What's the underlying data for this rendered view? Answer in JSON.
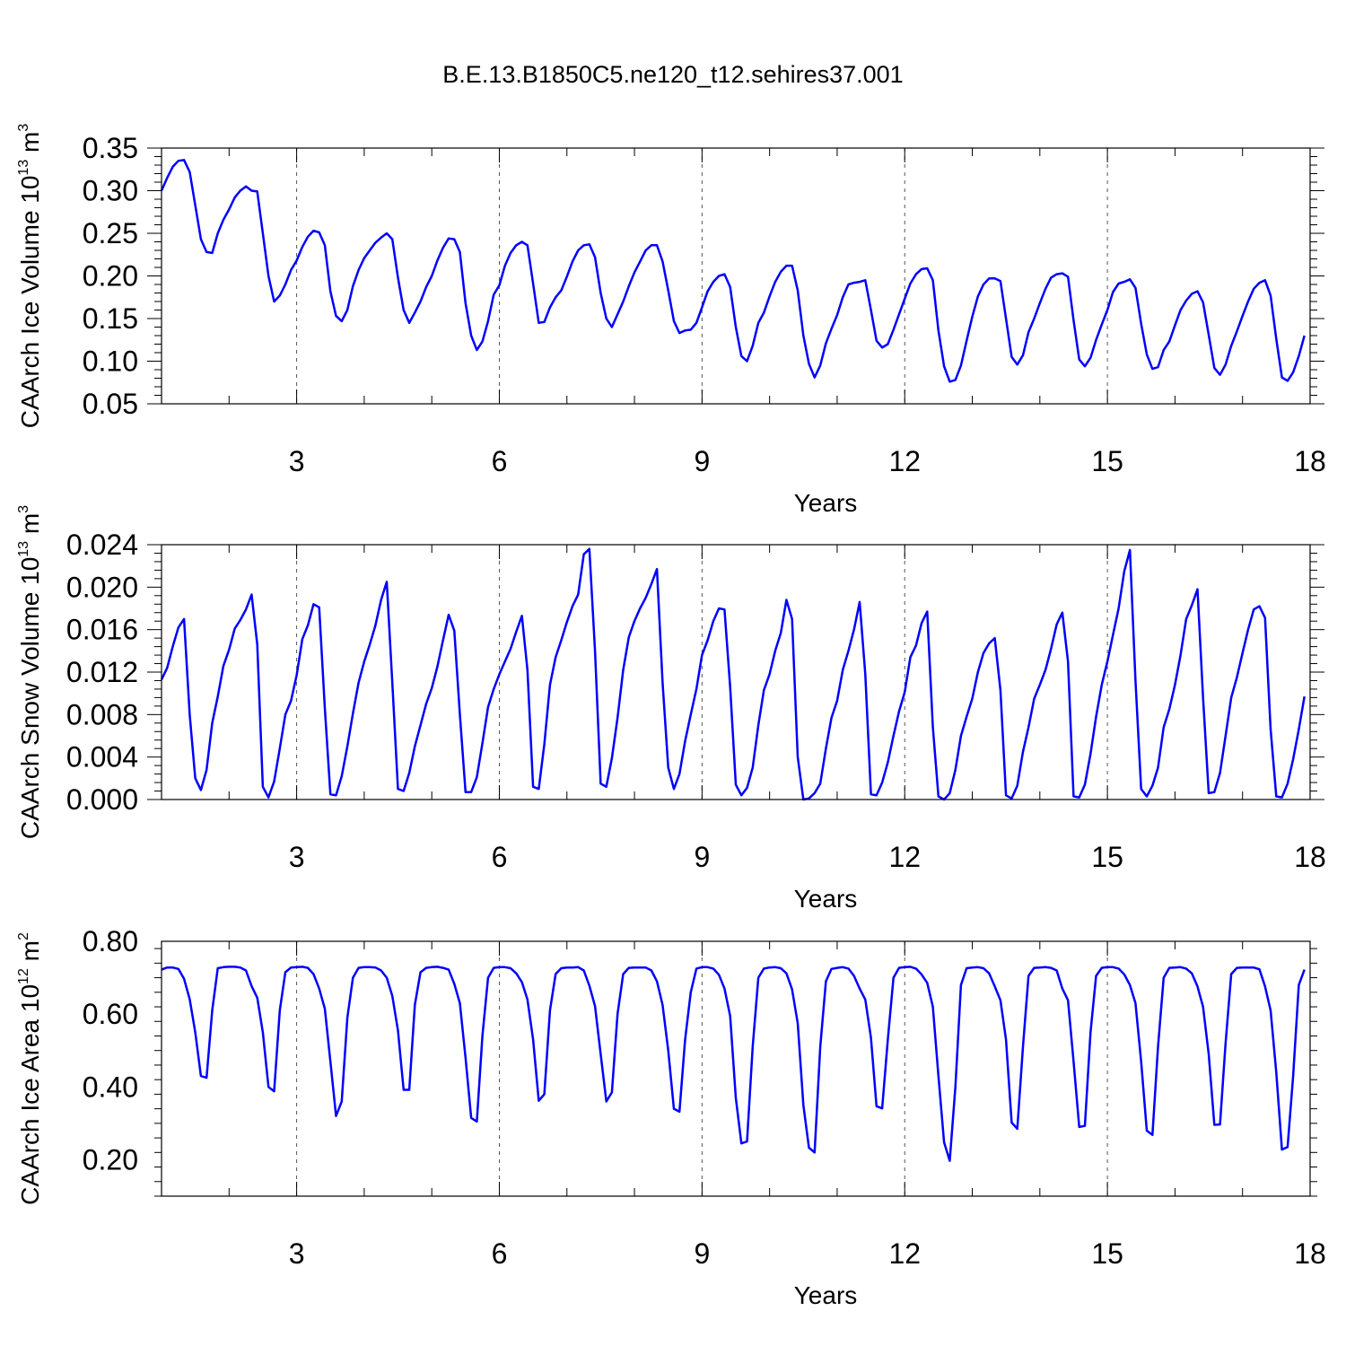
{
  "title": "B.E.13.B1850C5.ne120_t12.sehires37.001",
  "colors": {
    "line": "#0000ff",
    "axis": "#000000",
    "grid": "#555555"
  },
  "chart_data": [
    {
      "type": "line",
      "xlabel": "Years",
      "ylabel_main": "CAArch Ice Volume 10",
      "ylabel_exp": "13",
      "ylabel_unit": " m",
      "ylabel_unit_exp": "3",
      "xlim": [
        1.0,
        18.0
      ],
      "ylim": [
        0.05,
        0.35
      ],
      "yticks": [
        0.05,
        0.1,
        0.15,
        0.2,
        0.25,
        0.3,
        0.35
      ],
      "ytick_labels": [
        "0.05",
        "0.10",
        "0.15",
        "0.20",
        "0.25",
        "0.30",
        "0.35"
      ],
      "xticks": [
        3,
        6,
        9,
        12,
        15,
        18
      ],
      "xtick_labels": [
        "3",
        "6",
        "9",
        "12",
        "15",
        "18"
      ],
      "grid": "vertical-dashed",
      "series": [
        {
          "x_start": 1.0,
          "x_step": 0.08333,
          "values": [
            0.3,
            0.315,
            0.328,
            0.335,
            0.336,
            0.322,
            0.283,
            0.243,
            0.228,
            0.227,
            0.25,
            0.266,
            0.278,
            0.292,
            0.3,
            0.305,
            0.3,
            0.299,
            0.25,
            0.2,
            0.17,
            0.177,
            0.19,
            0.207,
            0.218,
            0.234,
            0.246,
            0.253,
            0.251,
            0.236,
            0.182,
            0.153,
            0.147,
            0.16,
            0.188,
            0.207,
            0.221,
            0.23,
            0.239,
            0.245,
            0.25,
            0.243,
            0.198,
            0.16,
            0.145,
            0.157,
            0.17,
            0.187,
            0.2,
            0.218,
            0.233,
            0.244,
            0.243,
            0.228,
            0.168,
            0.13,
            0.113,
            0.123,
            0.147,
            0.178,
            0.189,
            0.212,
            0.227,
            0.236,
            0.24,
            0.236,
            0.191,
            0.145,
            0.146,
            0.163,
            0.175,
            0.183,
            0.199,
            0.217,
            0.23,
            0.236,
            0.237,
            0.222,
            0.18,
            0.15,
            0.14,
            0.155,
            0.17,
            0.188,
            0.204,
            0.217,
            0.23,
            0.236,
            0.236,
            0.217,
            0.183,
            0.147,
            0.133,
            0.136,
            0.137,
            0.145,
            0.163,
            0.182,
            0.193,
            0.2,
            0.202,
            0.187,
            0.14,
            0.106,
            0.1,
            0.118,
            0.145,
            0.157,
            0.176,
            0.193,
            0.205,
            0.212,
            0.212,
            0.183,
            0.13,
            0.097,
            0.081,
            0.095,
            0.121,
            0.138,
            0.154,
            0.175,
            0.19,
            0.192,
            0.193,
            0.195,
            0.16,
            0.124,
            0.116,
            0.12,
            0.137,
            0.155,
            0.173,
            0.191,
            0.202,
            0.208,
            0.209,
            0.195,
            0.136,
            0.094,
            0.076,
            0.078,
            0.095,
            0.124,
            0.152,
            0.176,
            0.19,
            0.197,
            0.197,
            0.194,
            0.15,
            0.105,
            0.096,
            0.107,
            0.134,
            0.15,
            0.168,
            0.185,
            0.198,
            0.202,
            0.203,
            0.199,
            0.148,
            0.102,
            0.094,
            0.104,
            0.125,
            0.143,
            0.16,
            0.181,
            0.191,
            0.193,
            0.196,
            0.186,
            0.144,
            0.108,
            0.091,
            0.093,
            0.113,
            0.123,
            0.142,
            0.16,
            0.171,
            0.179,
            0.182,
            0.169,
            0.131,
            0.092,
            0.084,
            0.096,
            0.118,
            0.135,
            0.153,
            0.17,
            0.185,
            0.192,
            0.195,
            0.177,
            0.126,
            0.081,
            0.077,
            0.087,
            0.106,
            0.13
          ]
        }
      ]
    },
    {
      "type": "line",
      "xlabel": "Years",
      "ylabel_main": "CAArch Snow Volume 10",
      "ylabel_exp": "13",
      "ylabel_unit": " m",
      "ylabel_unit_exp": "3",
      "xlim": [
        1.0,
        18.0
      ],
      "ylim": [
        0.0,
        0.024
      ],
      "yticks": [
        0.0,
        0.004,
        0.008,
        0.012,
        0.016,
        0.02,
        0.024
      ],
      "ytick_labels": [
        "0.000",
        "0.004",
        "0.008",
        "0.012",
        "0.016",
        "0.020",
        "0.024"
      ],
      "xticks": [
        3,
        6,
        9,
        12,
        15,
        18
      ],
      "xtick_labels": [
        "3",
        "6",
        "9",
        "12",
        "15",
        "18"
      ],
      "grid": "vertical-dashed",
      "series": [
        {
          "x_start": 1.0,
          "x_step": 0.08333,
          "values": [
            0.0113,
            0.0124,
            0.0144,
            0.0162,
            0.017,
            0.008,
            0.002,
            0.0009,
            0.0028,
            0.0072,
            0.0097,
            0.0126,
            0.0141,
            0.0161,
            0.0169,
            0.0179,
            0.0193,
            0.0146,
            0.0012,
            0.0002,
            0.0017,
            0.0048,
            0.008,
            0.0093,
            0.0117,
            0.0151,
            0.0164,
            0.0184,
            0.0181,
            0.0086,
            0.0005,
            0.0004,
            0.0022,
            0.005,
            0.0081,
            0.011,
            0.013,
            0.0146,
            0.0164,
            0.0188,
            0.0205,
            0.011,
            0.001,
            0.0008,
            0.0025,
            0.005,
            0.007,
            0.009,
            0.0105,
            0.0125,
            0.015,
            0.0174,
            0.0159,
            0.008,
            0.0007,
            0.0007,
            0.0021,
            0.0053,
            0.0087,
            0.0104,
            0.0118,
            0.013,
            0.0142,
            0.0158,
            0.0173,
            0.0122,
            0.0012,
            0.001,
            0.0052,
            0.0108,
            0.0134,
            0.015,
            0.0167,
            0.0182,
            0.0193,
            0.0231,
            0.0236,
            0.014,
            0.0015,
            0.0012,
            0.0039,
            0.0077,
            0.0122,
            0.0153,
            0.0168,
            0.018,
            0.019,
            0.0203,
            0.0217,
            0.011,
            0.003,
            0.001,
            0.0024,
            0.0055,
            0.008,
            0.0104,
            0.0136,
            0.015,
            0.0168,
            0.018,
            0.0179,
            0.0106,
            0.0014,
            0.0004,
            0.0011,
            0.003,
            0.007,
            0.0103,
            0.0118,
            0.014,
            0.0157,
            0.0188,
            0.017,
            0.004,
            0.0,
            0.0001,
            0.0006,
            0.0015,
            0.0048,
            0.0077,
            0.0093,
            0.0122,
            0.014,
            0.016,
            0.0186,
            0.0118,
            0.0005,
            0.0004,
            0.0016,
            0.0035,
            0.006,
            0.0083,
            0.0101,
            0.0134,
            0.0145,
            0.0166,
            0.0177,
            0.0068,
            0.0003,
            0.0,
            0.0006,
            0.0028,
            0.006,
            0.0078,
            0.0095,
            0.012,
            0.0138,
            0.0147,
            0.0152,
            0.0103,
            0.0004,
            0.0001,
            0.0013,
            0.0045,
            0.0068,
            0.0095,
            0.0108,
            0.0122,
            0.0142,
            0.0165,
            0.0176,
            0.013,
            0.0003,
            0.0002,
            0.0014,
            0.0043,
            0.0078,
            0.0108,
            0.013,
            0.0155,
            0.018,
            0.0215,
            0.0235,
            0.0112,
            0.001,
            0.0003,
            0.0013,
            0.003,
            0.0068,
            0.0085,
            0.0108,
            0.0136,
            0.017,
            0.0183,
            0.0198,
            0.0096,
            0.0006,
            0.0007,
            0.0025,
            0.006,
            0.0096,
            0.0115,
            0.0138,
            0.016,
            0.0179,
            0.0182,
            0.0171,
            0.0066,
            0.0003,
            0.0002,
            0.0015,
            0.0038,
            0.0066,
            0.0097
          ]
        }
      ]
    },
    {
      "type": "line",
      "xlabel": "Years",
      "ylabel_main": "CAArch Ice Area 10",
      "ylabel_exp": "12",
      "ylabel_unit": " m",
      "ylabel_unit_exp": "2",
      "xlim": [
        1.0,
        18.0
      ],
      "ylim": [
        0.1,
        0.8
      ],
      "yticks": [
        0.2,
        0.4,
        0.6,
        0.8
      ],
      "ytick_labels": [
        "0.20",
        "0.40",
        "0.60",
        "0.80"
      ],
      "xticks": [
        3,
        6,
        9,
        12,
        15,
        18
      ],
      "xtick_labels": [
        "3",
        "6",
        "9",
        "12",
        "15",
        "18"
      ],
      "grid": "vertical-dashed",
      "series": [
        {
          "x_start": 1.0,
          "x_step": 0.08333,
          "values": [
            0.722,
            0.728,
            0.728,
            0.724,
            0.697,
            0.641,
            0.55,
            0.43,
            0.425,
            0.61,
            0.726,
            0.729,
            0.73,
            0.73,
            0.728,
            0.72,
            0.677,
            0.645,
            0.55,
            0.4,
            0.388,
            0.61,
            0.715,
            0.728,
            0.729,
            0.73,
            0.727,
            0.71,
            0.67,
            0.615,
            0.47,
            0.32,
            0.36,
            0.59,
            0.7,
            0.727,
            0.729,
            0.729,
            0.728,
            0.72,
            0.7,
            0.65,
            0.555,
            0.392,
            0.392,
            0.625,
            0.715,
            0.727,
            0.729,
            0.73,
            0.727,
            0.722,
            0.683,
            0.63,
            0.48,
            0.315,
            0.305,
            0.54,
            0.7,
            0.727,
            0.729,
            0.729,
            0.726,
            0.712,
            0.688,
            0.64,
            0.53,
            0.362,
            0.38,
            0.61,
            0.71,
            0.726,
            0.728,
            0.728,
            0.729,
            0.72,
            0.678,
            0.622,
            0.49,
            0.36,
            0.385,
            0.6,
            0.71,
            0.727,
            0.728,
            0.728,
            0.728,
            0.72,
            0.69,
            0.625,
            0.5,
            0.34,
            0.332,
            0.53,
            0.66,
            0.725,
            0.729,
            0.729,
            0.725,
            0.708,
            0.67,
            0.595,
            0.37,
            0.245,
            0.25,
            0.51,
            0.7,
            0.725,
            0.728,
            0.729,
            0.726,
            0.712,
            0.668,
            0.575,
            0.35,
            0.233,
            0.22,
            0.51,
            0.69,
            0.724,
            0.727,
            0.729,
            0.725,
            0.705,
            0.67,
            0.64,
            0.535,
            0.347,
            0.341,
            0.53,
            0.7,
            0.727,
            0.729,
            0.73,
            0.725,
            0.709,
            0.686,
            0.62,
            0.43,
            0.248,
            0.197,
            0.4,
            0.68,
            0.726,
            0.728,
            0.729,
            0.726,
            0.712,
            0.676,
            0.638,
            0.53,
            0.302,
            0.285,
            0.51,
            0.705,
            0.727,
            0.728,
            0.729,
            0.727,
            0.72,
            0.67,
            0.638,
            0.47,
            0.29,
            0.293,
            0.55,
            0.705,
            0.727,
            0.729,
            0.729,
            0.725,
            0.709,
            0.68,
            0.63,
            0.47,
            0.28,
            0.268,
            0.51,
            0.7,
            0.727,
            0.728,
            0.729,
            0.725,
            0.712,
            0.676,
            0.62,
            0.49,
            0.296,
            0.297,
            0.52,
            0.71,
            0.727,
            0.728,
            0.728,
            0.728,
            0.723,
            0.676,
            0.61,
            0.44,
            0.228,
            0.235,
            0.43,
            0.68,
            0.722
          ]
        }
      ]
    }
  ]
}
